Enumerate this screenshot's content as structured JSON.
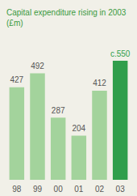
{
  "chart_data": {
    "type": "bar",
    "title": "Capital expenditure rising in 2003\n(£m)",
    "categories": [
      "98",
      "99",
      "00",
      "01",
      "02",
      "03"
    ],
    "values": [
      427,
      492,
      287,
      204,
      412,
      550
    ],
    "value_labels": [
      "427",
      "492",
      "287",
      "204",
      "412",
      "c.550"
    ],
    "colors": [
      "#a3d39c",
      "#a3d39c",
      "#a3d39c",
      "#a3d39c",
      "#a3d39c",
      "#2f9e4b"
    ],
    "ylim": [
      0,
      550
    ],
    "grid": false,
    "data_labels": true,
    "tick_labels": "x"
  }
}
